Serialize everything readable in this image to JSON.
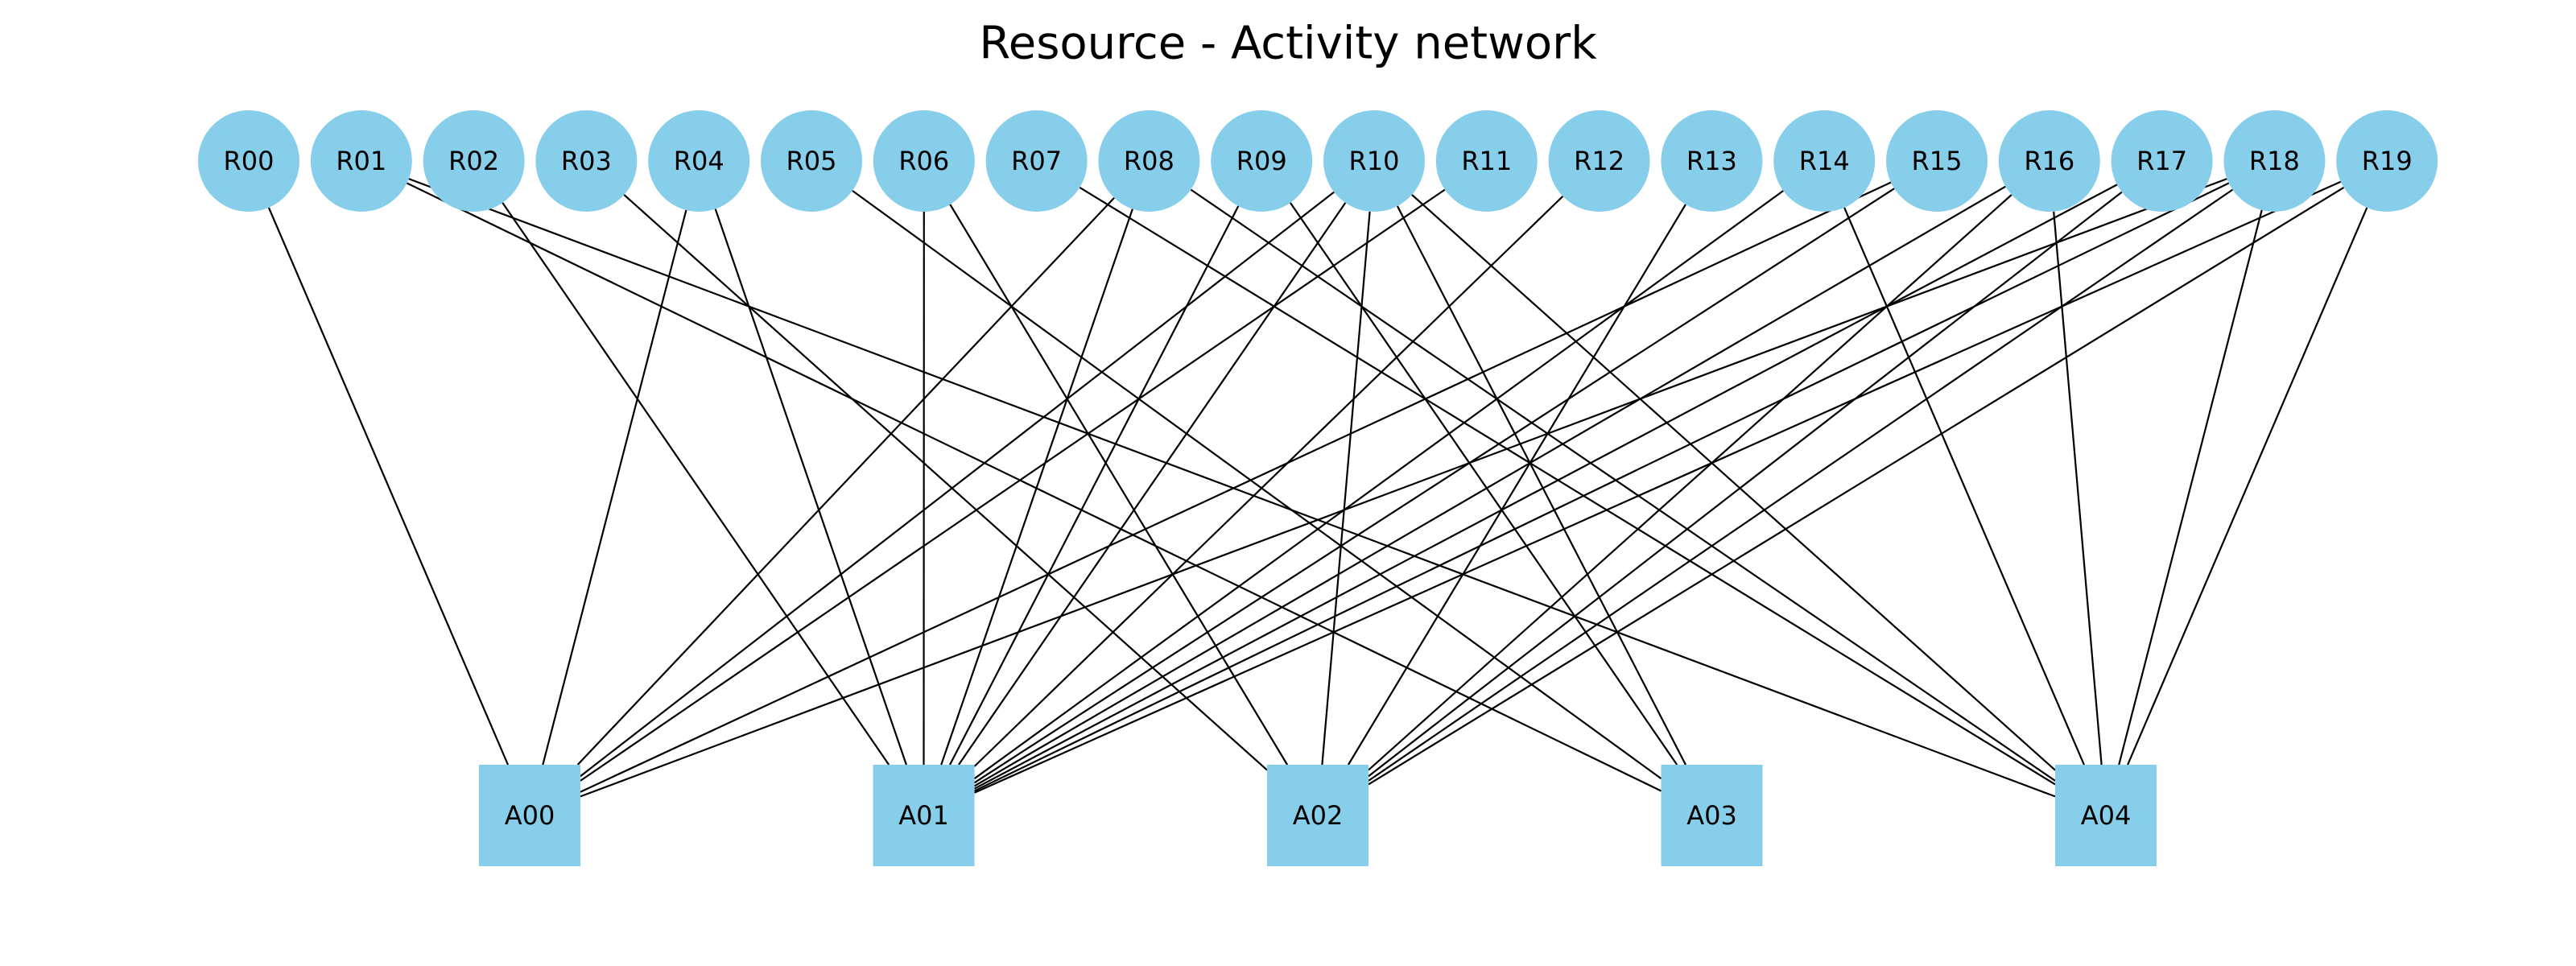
{
  "title": "Resource - Activity network",
  "colors": {
    "node_fill": "#87ceeb",
    "edge": "#000000",
    "background": "#ffffff"
  },
  "resources": [
    "R00",
    "R01",
    "R02",
    "R03",
    "R04",
    "R05",
    "R06",
    "R07",
    "R08",
    "R09",
    "R10",
    "R11",
    "R12",
    "R13",
    "R14",
    "R15",
    "R16",
    "R17",
    "R18",
    "R19"
  ],
  "activities": [
    "A00",
    "A01",
    "A02",
    "A03",
    "A04"
  ],
  "edges": [
    [
      "R00",
      "A00"
    ],
    [
      "R01",
      "A03"
    ],
    [
      "R01",
      "A04"
    ],
    [
      "R02",
      "A01"
    ],
    [
      "R03",
      "A02"
    ],
    [
      "R04",
      "A00"
    ],
    [
      "R04",
      "A01"
    ],
    [
      "R05",
      "A03"
    ],
    [
      "R06",
      "A01"
    ],
    [
      "R06",
      "A02"
    ],
    [
      "R07",
      "A04"
    ],
    [
      "R08",
      "A00"
    ],
    [
      "R08",
      "A01"
    ],
    [
      "R08",
      "A04"
    ],
    [
      "R09",
      "A01"
    ],
    [
      "R09",
      "A03"
    ],
    [
      "R10",
      "A00"
    ],
    [
      "R10",
      "A01"
    ],
    [
      "R10",
      "A02"
    ],
    [
      "R10",
      "A03"
    ],
    [
      "R10",
      "A04"
    ],
    [
      "R11",
      "A00"
    ],
    [
      "R12",
      "A01"
    ],
    [
      "R13",
      "A02"
    ],
    [
      "R14",
      "A01"
    ],
    [
      "R14",
      "A04"
    ],
    [
      "R15",
      "A00"
    ],
    [
      "R15",
      "A01"
    ],
    [
      "R16",
      "A01"
    ],
    [
      "R16",
      "A02"
    ],
    [
      "R16",
      "A04"
    ],
    [
      "R17",
      "A01"
    ],
    [
      "R17",
      "A02"
    ],
    [
      "R18",
      "A00"
    ],
    [
      "R18",
      "A01"
    ],
    [
      "R18",
      "A02"
    ],
    [
      "R18",
      "A04"
    ],
    [
      "R19",
      "A01"
    ],
    [
      "R19",
      "A02"
    ],
    [
      "R19",
      "A04"
    ]
  ]
}
